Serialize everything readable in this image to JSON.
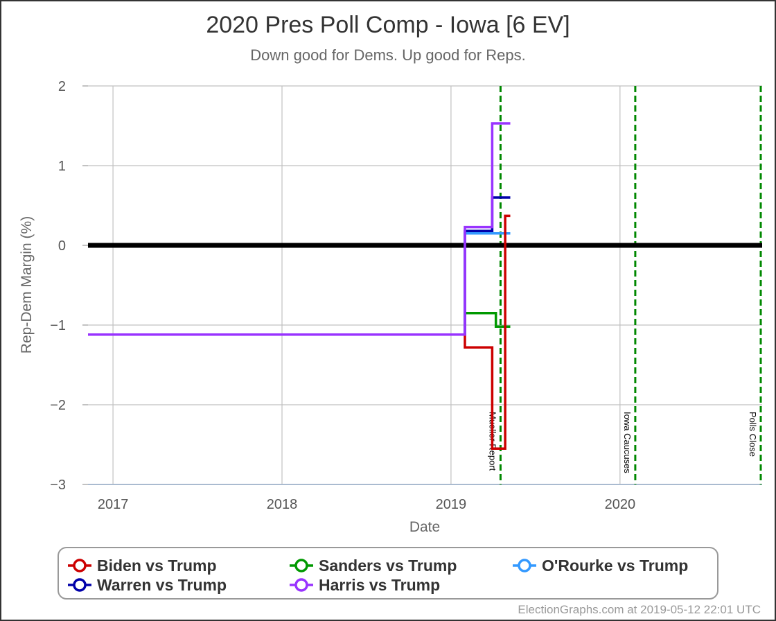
{
  "chart_data": {
    "type": "line",
    "title": "2020 Pres Poll Comp - Iowa [6 EV]",
    "subtitle": "Down good for Dems. Up good for Reps.",
    "xlabel": "Date",
    "ylabel": "Rep-Dem Margin (%)",
    "xlim": [
      "2016-11-08",
      "2020-11-03"
    ],
    "ylim": [
      -3,
      2
    ],
    "x_ticks": [
      {
        "date": "2017-01-01",
        "label": "2017"
      },
      {
        "date": "2018-01-01",
        "label": "2018"
      },
      {
        "date": "2019-01-01",
        "label": "2019"
      },
      {
        "date": "2020-01-01",
        "label": "2020"
      }
    ],
    "y_ticks": [
      {
        "value": 2,
        "label": "2"
      },
      {
        "value": 1,
        "label": "1"
      },
      {
        "value": 0,
        "label": "0"
      },
      {
        "value": -1,
        "label": "−1"
      },
      {
        "value": -2,
        "label": "−2"
      },
      {
        "value": -3,
        "label": "−3"
      }
    ],
    "grid": true,
    "events": [
      {
        "date": "2019-04-18",
        "label": "Mueller Report"
      },
      {
        "date": "2020-02-03",
        "label": "Iowa Caucuses"
      },
      {
        "date": "2020-11-03",
        "label": "Polls Close"
      }
    ],
    "series": [
      {
        "name": "Sanders vs Trump",
        "color": "#009900",
        "points": [
          [
            "2016-11-08",
            -1.12
          ],
          [
            "2019-01-31",
            -1.12
          ],
          [
            "2019-01-31",
            -0.85
          ],
          [
            "2019-04-08",
            -0.85
          ],
          [
            "2019-04-08",
            -1.02
          ],
          [
            "2019-05-09",
            -1.02
          ]
        ]
      },
      {
        "name": "O'Rourke vs Trump",
        "color": "#3399ff",
        "points": [
          [
            "2016-11-08",
            -1.12
          ],
          [
            "2019-01-31",
            -1.12
          ],
          [
            "2019-01-31",
            0.15
          ],
          [
            "2019-05-09",
            0.15
          ]
        ]
      },
      {
        "name": "Warren vs Trump",
        "color": "#0000aa",
        "points": [
          [
            "2016-11-08",
            -1.12
          ],
          [
            "2019-01-31",
            -1.12
          ],
          [
            "2019-01-31",
            0.18
          ],
          [
            "2019-03-31",
            0.18
          ],
          [
            "2019-03-31",
            0.6
          ],
          [
            "2019-05-09",
            0.6
          ]
        ]
      },
      {
        "name": "Biden vs Trump",
        "color": "#cc0000",
        "points": [
          [
            "2016-11-08",
            -1.12
          ],
          [
            "2019-01-31",
            -1.12
          ],
          [
            "2019-01-31",
            -1.28
          ],
          [
            "2019-03-31",
            -1.28
          ],
          [
            "2019-03-31",
            -2.55
          ],
          [
            "2019-04-28",
            -2.55
          ],
          [
            "2019-04-28",
            0.37
          ],
          [
            "2019-05-09",
            0.37
          ]
        ]
      },
      {
        "name": "Harris vs Trump",
        "color": "#9933ff",
        "points": [
          [
            "2016-11-08",
            -1.12
          ],
          [
            "2019-01-31",
            -1.12
          ],
          [
            "2019-01-31",
            0.23
          ],
          [
            "2019-03-31",
            0.23
          ],
          [
            "2019-03-31",
            1.53
          ],
          [
            "2019-05-09",
            1.53
          ]
        ]
      }
    ],
    "legend": {
      "placement": "bottom",
      "items": [
        {
          "name": "Biden vs Trump",
          "color": "#cc0000"
        },
        {
          "name": "Sanders vs Trump",
          "color": "#009900"
        },
        {
          "name": "O'Rourke vs Trump",
          "color": "#3399ff"
        },
        {
          "name": "Warren vs Trump",
          "color": "#0000aa"
        },
        {
          "name": "Harris vs Trump",
          "color": "#9933ff"
        }
      ]
    }
  },
  "credit": "ElectionGraphs.com at 2019-05-12 22:01 UTC"
}
